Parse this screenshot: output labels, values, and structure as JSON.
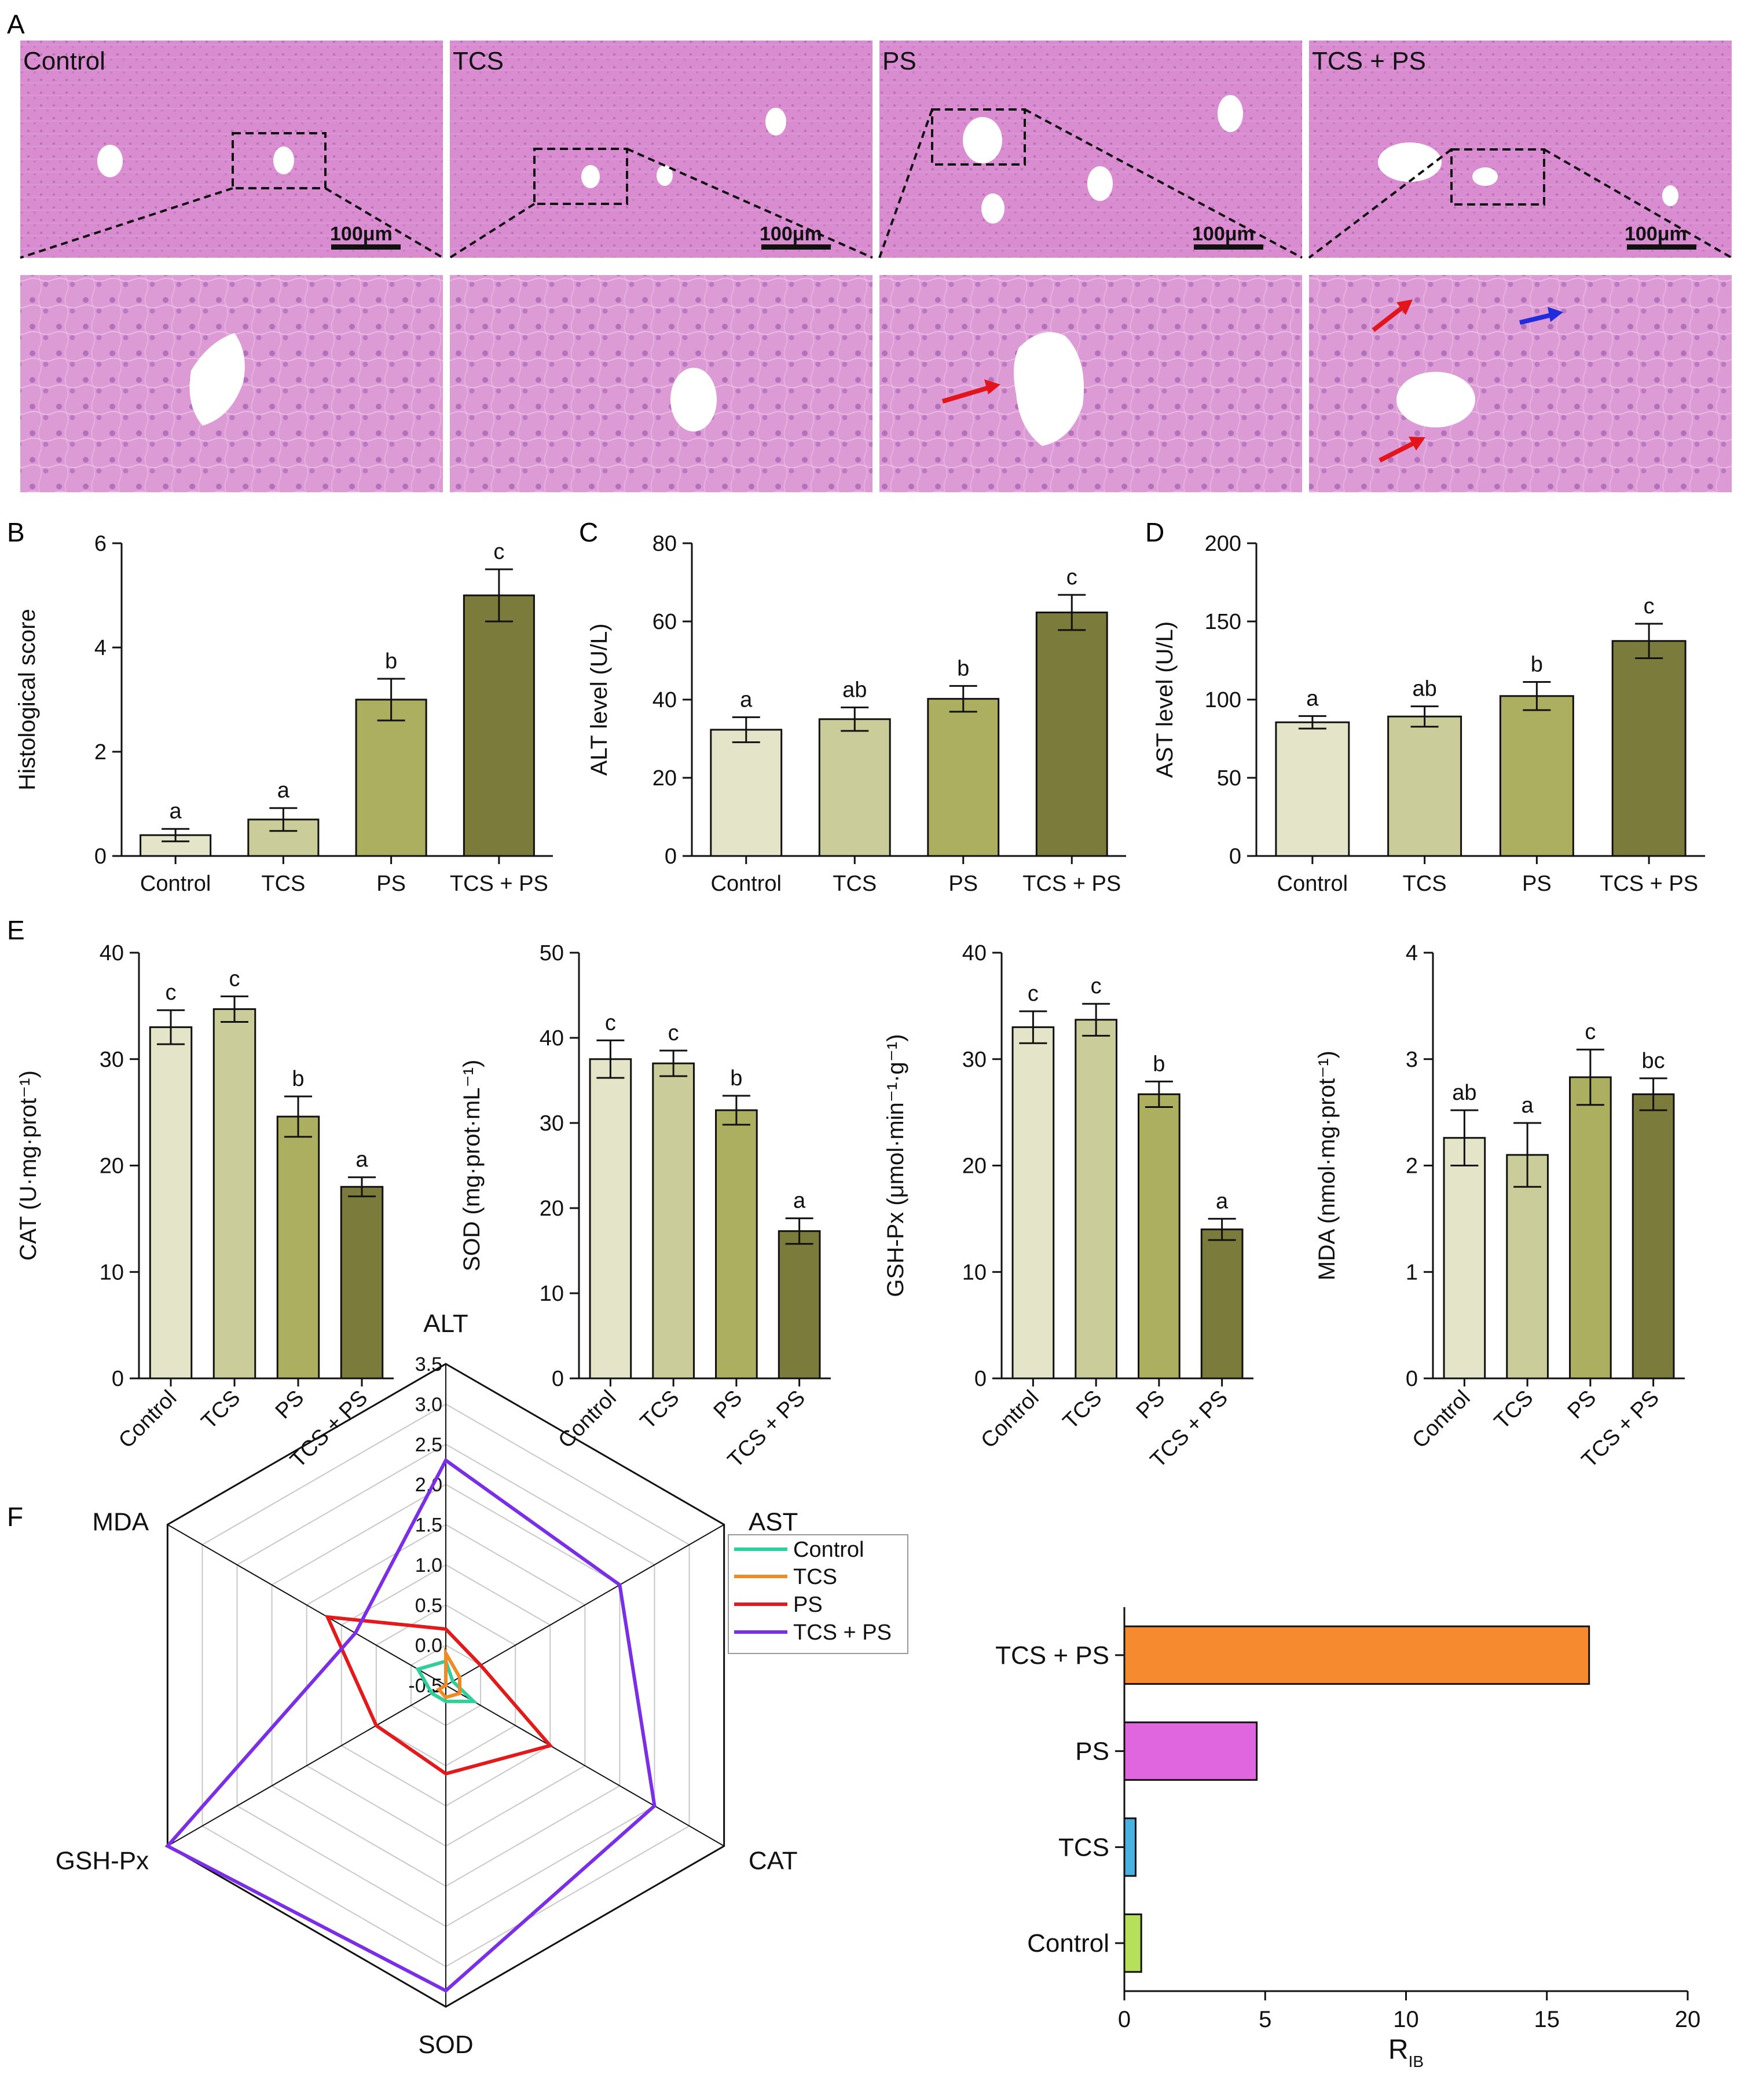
{
  "figure": {
    "panel_labels": [
      "A",
      "B",
      "C",
      "D",
      "E",
      "F"
    ],
    "colors": {
      "control": "#e4e4c9",
      "tcs": "#cacd99",
      "ps": "#acaf5f",
      "tcs_ps": "#7b7b3c",
      "tissue": "#d98cd0",
      "tissue_zoom": "#dd9bd6",
      "arrow_red": "#e3151c",
      "arrow_blue": "#1f2bdc",
      "radar_control": "#2ecf9b",
      "radar_tcs": "#f08a24",
      "radar_ps": "#e31a1c",
      "radar_tcs_ps": "#7a2ee6",
      "rib_tcs_ps": "#f58a2f",
      "rib_ps": "#e066e0",
      "rib_tcs": "#4ab2e0",
      "rib_control": "#b7e05a"
    }
  },
  "histology": {
    "groups": [
      "Control",
      "TCS",
      "PS",
      "TCS + PS"
    ],
    "scale_bar": "100μm"
  },
  "chart_data": [
    {
      "id": "B",
      "type": "bar",
      "title": "",
      "categories": [
        "Control",
        "TCS",
        "PS",
        "TCS + PS"
      ],
      "values": [
        0.4,
        0.7,
        3.0,
        5.0
      ],
      "errors": [
        0.12,
        0.22,
        0.4,
        0.5
      ],
      "letters": [
        "a",
        "a",
        "b",
        "c"
      ],
      "xlabel": "",
      "ylabel": "Histological score",
      "ylim": [
        0,
        6
      ],
      "yticks": [
        "0",
        "2",
        "4",
        "6"
      ],
      "ytick_values": [
        0,
        2,
        4,
        6
      ]
    },
    {
      "id": "C",
      "type": "bar",
      "title": "",
      "categories": [
        "Control",
        "TCS",
        "PS",
        "TCS + PS"
      ],
      "values": [
        32.3,
        35.0,
        40.2,
        62.3
      ],
      "errors": [
        3.2,
        3.0,
        3.3,
        4.5
      ],
      "letters": [
        "a",
        "ab",
        "b",
        "c"
      ],
      "xlabel": "",
      "ylabel": "ALT level (U/L)",
      "ylim": [
        0,
        80
      ],
      "yticks": [
        "0",
        "20",
        "40",
        "60",
        "80"
      ],
      "ytick_values": [
        0,
        20,
        40,
        60,
        80
      ]
    },
    {
      "id": "D",
      "type": "bar",
      "title": "",
      "categories": [
        "Control",
        "TCS",
        "PS",
        "TCS + PS"
      ],
      "values": [
        85.5,
        89.2,
        102.3,
        137.5
      ],
      "errors": [
        4.0,
        6.5,
        9.0,
        11.0
      ],
      "letters": [
        "a",
        "ab",
        "b",
        "c"
      ],
      "xlabel": "",
      "ylabel": "AST level (U/L)",
      "ylim": [
        0,
        200
      ],
      "yticks": [
        "0",
        "50",
        "100",
        "150",
        "200"
      ],
      "ytick_values": [
        0,
        50,
        100,
        150,
        200
      ]
    },
    {
      "id": "E1",
      "type": "bar",
      "title": "",
      "categories": [
        "Control",
        "TCS",
        "PS",
        "TCS + PS"
      ],
      "values": [
        33.0,
        34.7,
        24.6,
        18.0
      ],
      "errors": [
        1.6,
        1.2,
        1.9,
        0.9
      ],
      "letters": [
        "c",
        "c",
        "b",
        "a"
      ],
      "xlabel": "",
      "ylabel": "CAT (U·mg·prot⁻¹)",
      "ylim": [
        0,
        40
      ],
      "yticks": [
        "0",
        "10",
        "20",
        "30",
        "40"
      ],
      "ytick_values": [
        0,
        10,
        20,
        30,
        40
      ]
    },
    {
      "id": "E2",
      "type": "bar",
      "title": "",
      "categories": [
        "Control",
        "TCS",
        "PS",
        "TCS + PS"
      ],
      "values": [
        37.5,
        37.0,
        31.5,
        17.3
      ],
      "errors": [
        2.2,
        1.5,
        1.7,
        1.5
      ],
      "letters": [
        "c",
        "c",
        "b",
        "a"
      ],
      "xlabel": "",
      "ylabel": "SOD (mg·prot·mL⁻¹)",
      "ylim": [
        0,
        50
      ],
      "yticks": [
        "0",
        "10",
        "20",
        "30",
        "40",
        "50"
      ],
      "ytick_values": [
        0,
        10,
        20,
        30,
        40,
        50
      ]
    },
    {
      "id": "E3",
      "type": "bar",
      "title": "",
      "categories": [
        "Control",
        "TCS",
        "PS",
        "TCS + PS"
      ],
      "values": [
        33.0,
        33.7,
        26.7,
        14.0
      ],
      "errors": [
        1.5,
        1.5,
        1.2,
        1.0
      ],
      "letters": [
        "c",
        "c",
        "b",
        "a"
      ],
      "xlabel": "",
      "ylabel": "GSH-Px (μmol·min⁻¹·g⁻¹)",
      "ylim": [
        0,
        40
      ],
      "yticks": [
        "0",
        "10",
        "20",
        "30",
        "40"
      ],
      "ytick_values": [
        0,
        10,
        20,
        30,
        40
      ]
    },
    {
      "id": "E4",
      "type": "bar",
      "title": "",
      "categories": [
        "Control",
        "TCS",
        "PS",
        "TCS + PS"
      ],
      "values": [
        2.26,
        2.1,
        2.83,
        2.67
      ],
      "errors": [
        0.26,
        0.3,
        0.26,
        0.15
      ],
      "letters": [
        "ab",
        "a",
        "c",
        "bc"
      ],
      "xlabel": "",
      "ylabel": "MDA (nmol·mg·prot⁻¹)",
      "ylim": [
        0,
        4
      ],
      "yticks": [
        "0",
        "1",
        "2",
        "3",
        "4"
      ],
      "ytick_values": [
        0,
        1,
        2,
        3,
        4
      ]
    },
    {
      "id": "F-radar",
      "type": "radar",
      "title": "",
      "axes": [
        "ALT",
        "AST",
        "CAT",
        "SOD",
        "GSH-Px",
        "MDA"
      ],
      "rlim": [
        -0.5,
        3.5
      ],
      "rticks": [
        "-0.5",
        "0.0",
        "0.5",
        "1.0",
        "1.5",
        "2.0",
        "2.5",
        "3.0",
        "3.5"
      ],
      "rtick_values": [
        -0.5,
        0,
        0.5,
        1,
        1.5,
        2,
        2.5,
        3,
        3.5
      ],
      "series": [
        {
          "name": "Control",
          "values": [
            -0.2,
            -0.4,
            -0.1,
            -0.3,
            -0.3,
            -0.1
          ]
        },
        {
          "name": "TCS",
          "values": [
            -0.1,
            -0.3,
            -0.3,
            -0.35,
            -0.4,
            -0.5
          ]
        },
        {
          "name": "PS",
          "values": [
            0.2,
            0.0,
            1.0,
            0.6,
            0.5,
            1.2
          ]
        },
        {
          "name": "TCS + PS",
          "values": [
            2.3,
            2.0,
            2.5,
            3.3,
            3.5,
            0.8
          ]
        }
      ],
      "legend": [
        "Control",
        "TCS",
        "PS",
        "TCS + PS"
      ]
    },
    {
      "id": "F-rib",
      "type": "bar",
      "orientation": "horizontal",
      "title": "",
      "categories": [
        "TCS + PS",
        "PS",
        "TCS",
        "Control"
      ],
      "values": [
        16.5,
        4.7,
        0.4,
        0.6
      ],
      "xlabel": "R",
      "xlabel_sub": "IB",
      "ylabel": "",
      "xlim": [
        0,
        20
      ],
      "xticks": [
        "0",
        "5",
        "10",
        "15",
        "20"
      ],
      "xtick_values": [
        0,
        5,
        10,
        15,
        20
      ]
    }
  ]
}
